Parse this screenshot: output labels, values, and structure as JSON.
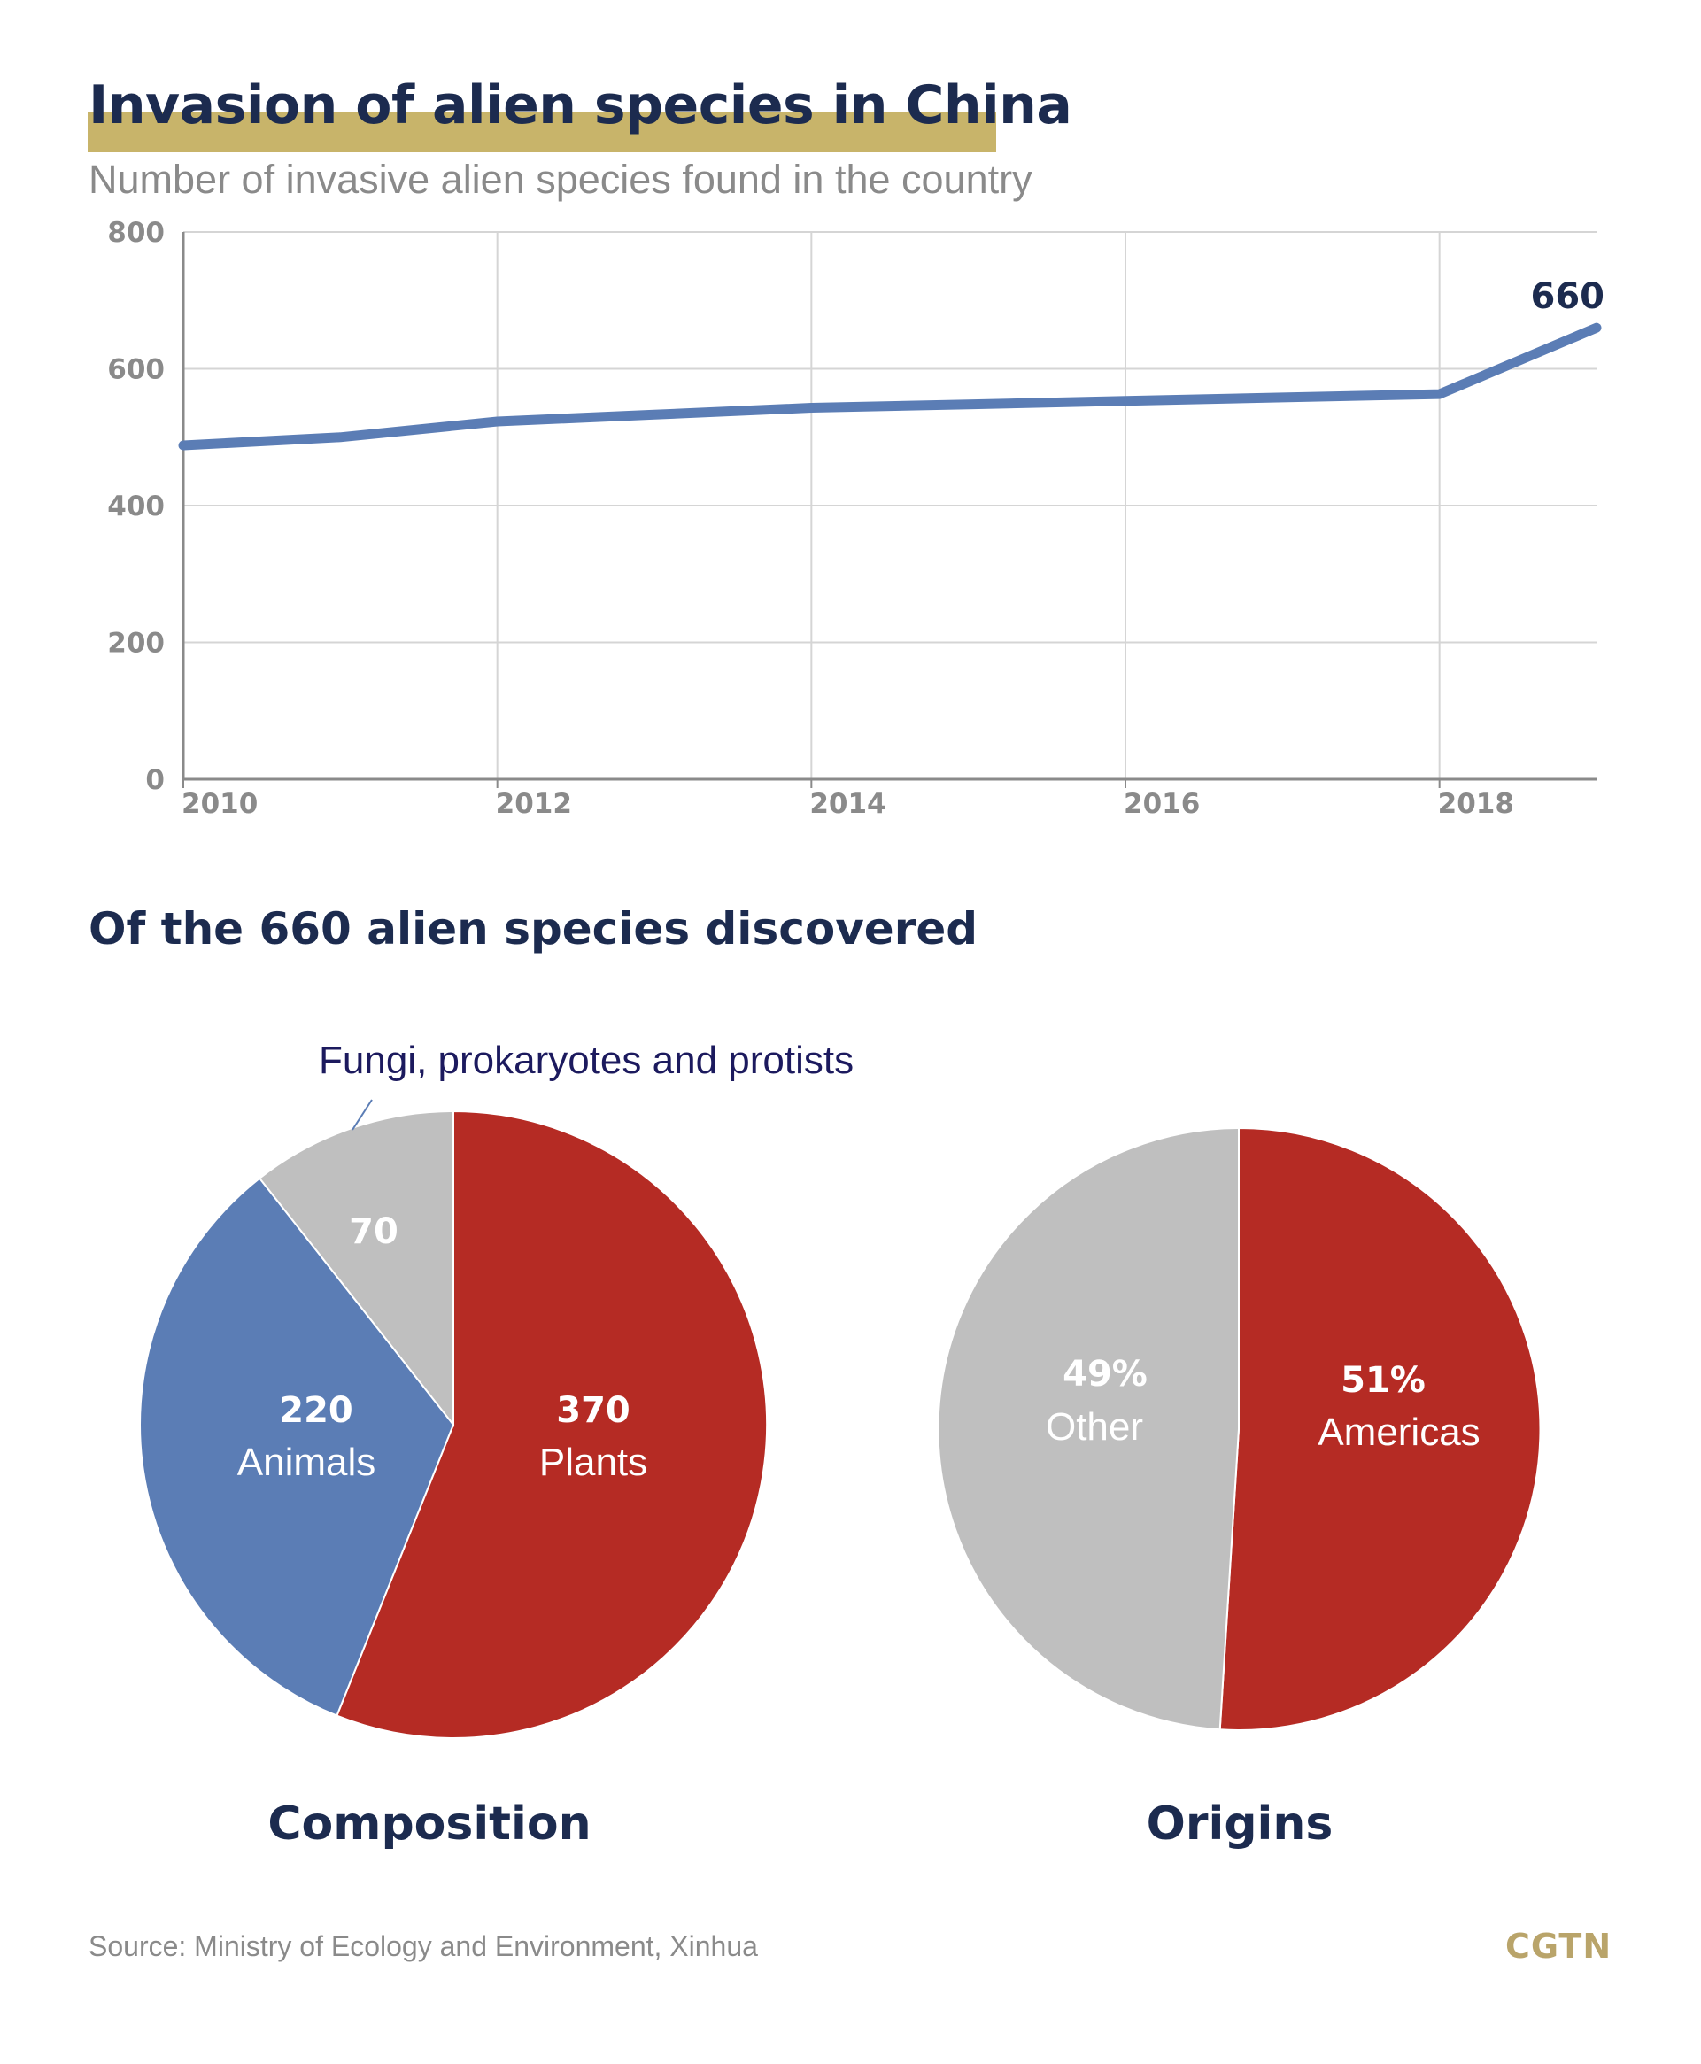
{
  "header": {
    "title": "Invasion of alien species in China",
    "subtitle": "Number of invasive alien species found in the country"
  },
  "section_title": "Of the 660 alien species discovered",
  "colors": {
    "title": "#1c2b4f",
    "highlight": "#c8b46a",
    "line": "#5b7db5",
    "plants": "#b52b24",
    "animals": "#5b7db5",
    "other": "#bfbfbf"
  },
  "chart_data": [
    {
      "type": "line",
      "x": [
        2010,
        2011,
        2012,
        2013,
        2014,
        2015,
        2016,
        2017,
        2018,
        2019
      ],
      "series": [
        {
          "values": [
            488,
            500,
            523,
            533,
            543,
            548,
            553,
            558,
            563,
            660
          ]
        }
      ],
      "xticks": [
        "2010",
        "2012",
        "2014",
        "2016",
        "2018"
      ],
      "yticks": [
        "0",
        "200",
        "400",
        "600",
        "800"
      ],
      "xlim": [
        2010,
        2019
      ],
      "ylim": [
        0,
        800
      ],
      "end_label": "660",
      "grid": true
    },
    {
      "type": "pie",
      "title": "Composition",
      "slices": [
        {
          "value_label": "370",
          "name": "Plants",
          "value": 370
        },
        {
          "value_label": "220",
          "name": "Animals",
          "value": 220
        },
        {
          "value_label": "70",
          "name": "Fungi, prokaryotes and protists",
          "value": 70
        }
      ]
    },
    {
      "type": "pie",
      "title": "Origins",
      "slices": [
        {
          "value_label": "51%",
          "name": "Americas",
          "value": 51
        },
        {
          "value_label": "49%",
          "name": "Other",
          "value": 49
        }
      ]
    }
  ],
  "footer": {
    "source": "Source: Ministry of Ecology and Environment, Xinhua",
    "logo": "CGTN"
  }
}
